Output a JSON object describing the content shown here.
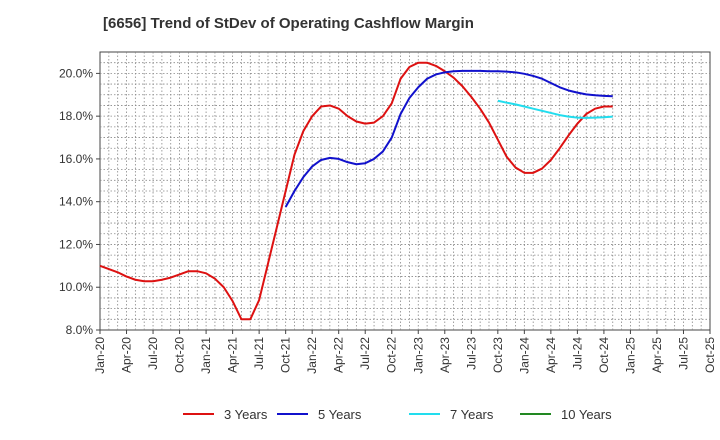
{
  "chart_data": {
    "type": "line",
    "title": "[6656]  Trend of StDev of Operating Cashflow Margin",
    "xlabel": "",
    "ylabel": "",
    "ylim": [
      8,
      21
    ],
    "yticks": [
      "8.0%",
      "10.0%",
      "12.0%",
      "14.0%",
      "16.0%",
      "18.0%",
      "20.0%"
    ],
    "ytick_values": [
      8,
      10,
      12,
      14,
      16,
      18,
      20
    ],
    "xticks": [
      "Jan-20",
      "Apr-20",
      "Jul-20",
      "Oct-20",
      "Jan-21",
      "Apr-21",
      "Jul-21",
      "Oct-21",
      "Jan-22",
      "Apr-22",
      "Jul-22",
      "Oct-22",
      "Jan-23",
      "Apr-23",
      "Jul-23",
      "Oct-23",
      "Jan-24",
      "Apr-24",
      "Jul-24",
      "Oct-24",
      "Jan-25",
      "Apr-25",
      "Jul-25",
      "Oct-25"
    ],
    "grid": true,
    "legend_position": "bottom",
    "series": [
      {
        "name": "3 Years",
        "color": "#dd1111",
        "points": [
          [
            "Jan-20",
            11.0
          ],
          [
            "Feb-20",
            10.85
          ],
          [
            "Mar-20",
            10.7
          ],
          [
            "Apr-20",
            10.5
          ],
          [
            "May-20",
            10.35
          ],
          [
            "Jun-20",
            10.28
          ],
          [
            "Jul-20",
            10.28
          ],
          [
            "Aug-20",
            10.35
          ],
          [
            "Sep-20",
            10.45
          ],
          [
            "Oct-20",
            10.6
          ],
          [
            "Nov-20",
            10.75
          ],
          [
            "Dec-20",
            10.75
          ],
          [
            "Jan-21",
            10.65
          ],
          [
            "Feb-21",
            10.4
          ],
          [
            "Mar-21",
            10.0
          ],
          [
            "Apr-21",
            9.35
          ],
          [
            "May-21",
            8.5
          ],
          [
            "Jun-21",
            8.5
          ],
          [
            "Jul-21",
            9.4
          ],
          [
            "Aug-21",
            11.1
          ],
          [
            "Sep-21",
            12.8
          ],
          [
            "Oct-21",
            14.5
          ],
          [
            "Nov-21",
            16.2
          ],
          [
            "Dec-21",
            17.3
          ],
          [
            "Jan-22",
            18.0
          ],
          [
            "Feb-22",
            18.45
          ],
          [
            "Mar-22",
            18.5
          ],
          [
            "Apr-22",
            18.35
          ],
          [
            "May-22",
            18.0
          ],
          [
            "Jun-22",
            17.75
          ],
          [
            "Jul-22",
            17.65
          ],
          [
            "Aug-22",
            17.7
          ],
          [
            "Sep-22",
            18.0
          ],
          [
            "Oct-22",
            18.6
          ],
          [
            "Nov-22",
            19.75
          ],
          [
            "Dec-22",
            20.3
          ],
          [
            "Jan-23",
            20.5
          ],
          [
            "Feb-23",
            20.5
          ],
          [
            "Mar-23",
            20.35
          ],
          [
            "Apr-23",
            20.1
          ],
          [
            "May-23",
            19.8
          ],
          [
            "Jun-23",
            19.4
          ],
          [
            "Jul-23",
            18.9
          ],
          [
            "Aug-23",
            18.35
          ],
          [
            "Sep-23",
            17.7
          ],
          [
            "Oct-23",
            16.9
          ],
          [
            "Nov-23",
            16.1
          ],
          [
            "Dec-23",
            15.6
          ],
          [
            "Jan-24",
            15.35
          ],
          [
            "Feb-24",
            15.35
          ],
          [
            "Mar-24",
            15.55
          ],
          [
            "Apr-24",
            15.95
          ],
          [
            "May-24",
            16.5
          ],
          [
            "Jun-24",
            17.1
          ],
          [
            "Jul-24",
            17.65
          ],
          [
            "Aug-24",
            18.1
          ],
          [
            "Sep-24",
            18.35
          ],
          [
            "Oct-24",
            18.45
          ],
          [
            "Nov-24",
            18.45
          ]
        ]
      },
      {
        "name": "5 Years",
        "color": "#1111cc",
        "points": [
          [
            "Oct-21",
            13.75
          ],
          [
            "Nov-21",
            14.5
          ],
          [
            "Dec-21",
            15.15
          ],
          [
            "Jan-22",
            15.65
          ],
          [
            "Feb-22",
            15.95
          ],
          [
            "Mar-22",
            16.05
          ],
          [
            "Apr-22",
            16.0
          ],
          [
            "May-22",
            15.85
          ],
          [
            "Jun-22",
            15.75
          ],
          [
            "Jul-22",
            15.8
          ],
          [
            "Aug-22",
            16.0
          ],
          [
            "Sep-22",
            16.35
          ],
          [
            "Oct-22",
            17.0
          ],
          [
            "Nov-22",
            18.1
          ],
          [
            "Dec-22",
            18.85
          ],
          [
            "Jan-23",
            19.35
          ],
          [
            "Feb-23",
            19.75
          ],
          [
            "Mar-23",
            19.95
          ],
          [
            "Apr-23",
            20.05
          ],
          [
            "May-23",
            20.1
          ],
          [
            "Jun-23",
            20.12
          ],
          [
            "Jul-23",
            20.12
          ],
          [
            "Aug-23",
            20.12
          ],
          [
            "Sep-23",
            20.1
          ],
          [
            "Oct-23",
            20.1
          ],
          [
            "Nov-23",
            20.08
          ],
          [
            "Dec-23",
            20.05
          ],
          [
            "Jan-24",
            19.98
          ],
          [
            "Feb-24",
            19.88
          ],
          [
            "Mar-24",
            19.75
          ],
          [
            "Apr-24",
            19.55
          ],
          [
            "May-24",
            19.35
          ],
          [
            "Jun-24",
            19.2
          ],
          [
            "Jul-24",
            19.1
          ],
          [
            "Aug-24",
            19.02
          ],
          [
            "Sep-24",
            18.98
          ],
          [
            "Oct-24",
            18.95
          ],
          [
            "Nov-24",
            18.93
          ]
        ]
      },
      {
        "name": "7 Years",
        "color": "#22ddee",
        "points": [
          [
            "Oct-23",
            18.72
          ],
          [
            "Nov-23",
            18.63
          ],
          [
            "Dec-23",
            18.55
          ],
          [
            "Jan-24",
            18.45
          ],
          [
            "Feb-24",
            18.35
          ],
          [
            "Mar-24",
            18.25
          ],
          [
            "Apr-24",
            18.15
          ],
          [
            "May-24",
            18.05
          ],
          [
            "Jun-24",
            17.98
          ],
          [
            "Jul-24",
            17.93
          ],
          [
            "Aug-24",
            17.92
          ],
          [
            "Sep-24",
            17.93
          ],
          [
            "Oct-24",
            17.95
          ],
          [
            "Nov-24",
            17.98
          ]
        ]
      },
      {
        "name": "10 Years",
        "color": "#228822",
        "points": []
      }
    ]
  }
}
